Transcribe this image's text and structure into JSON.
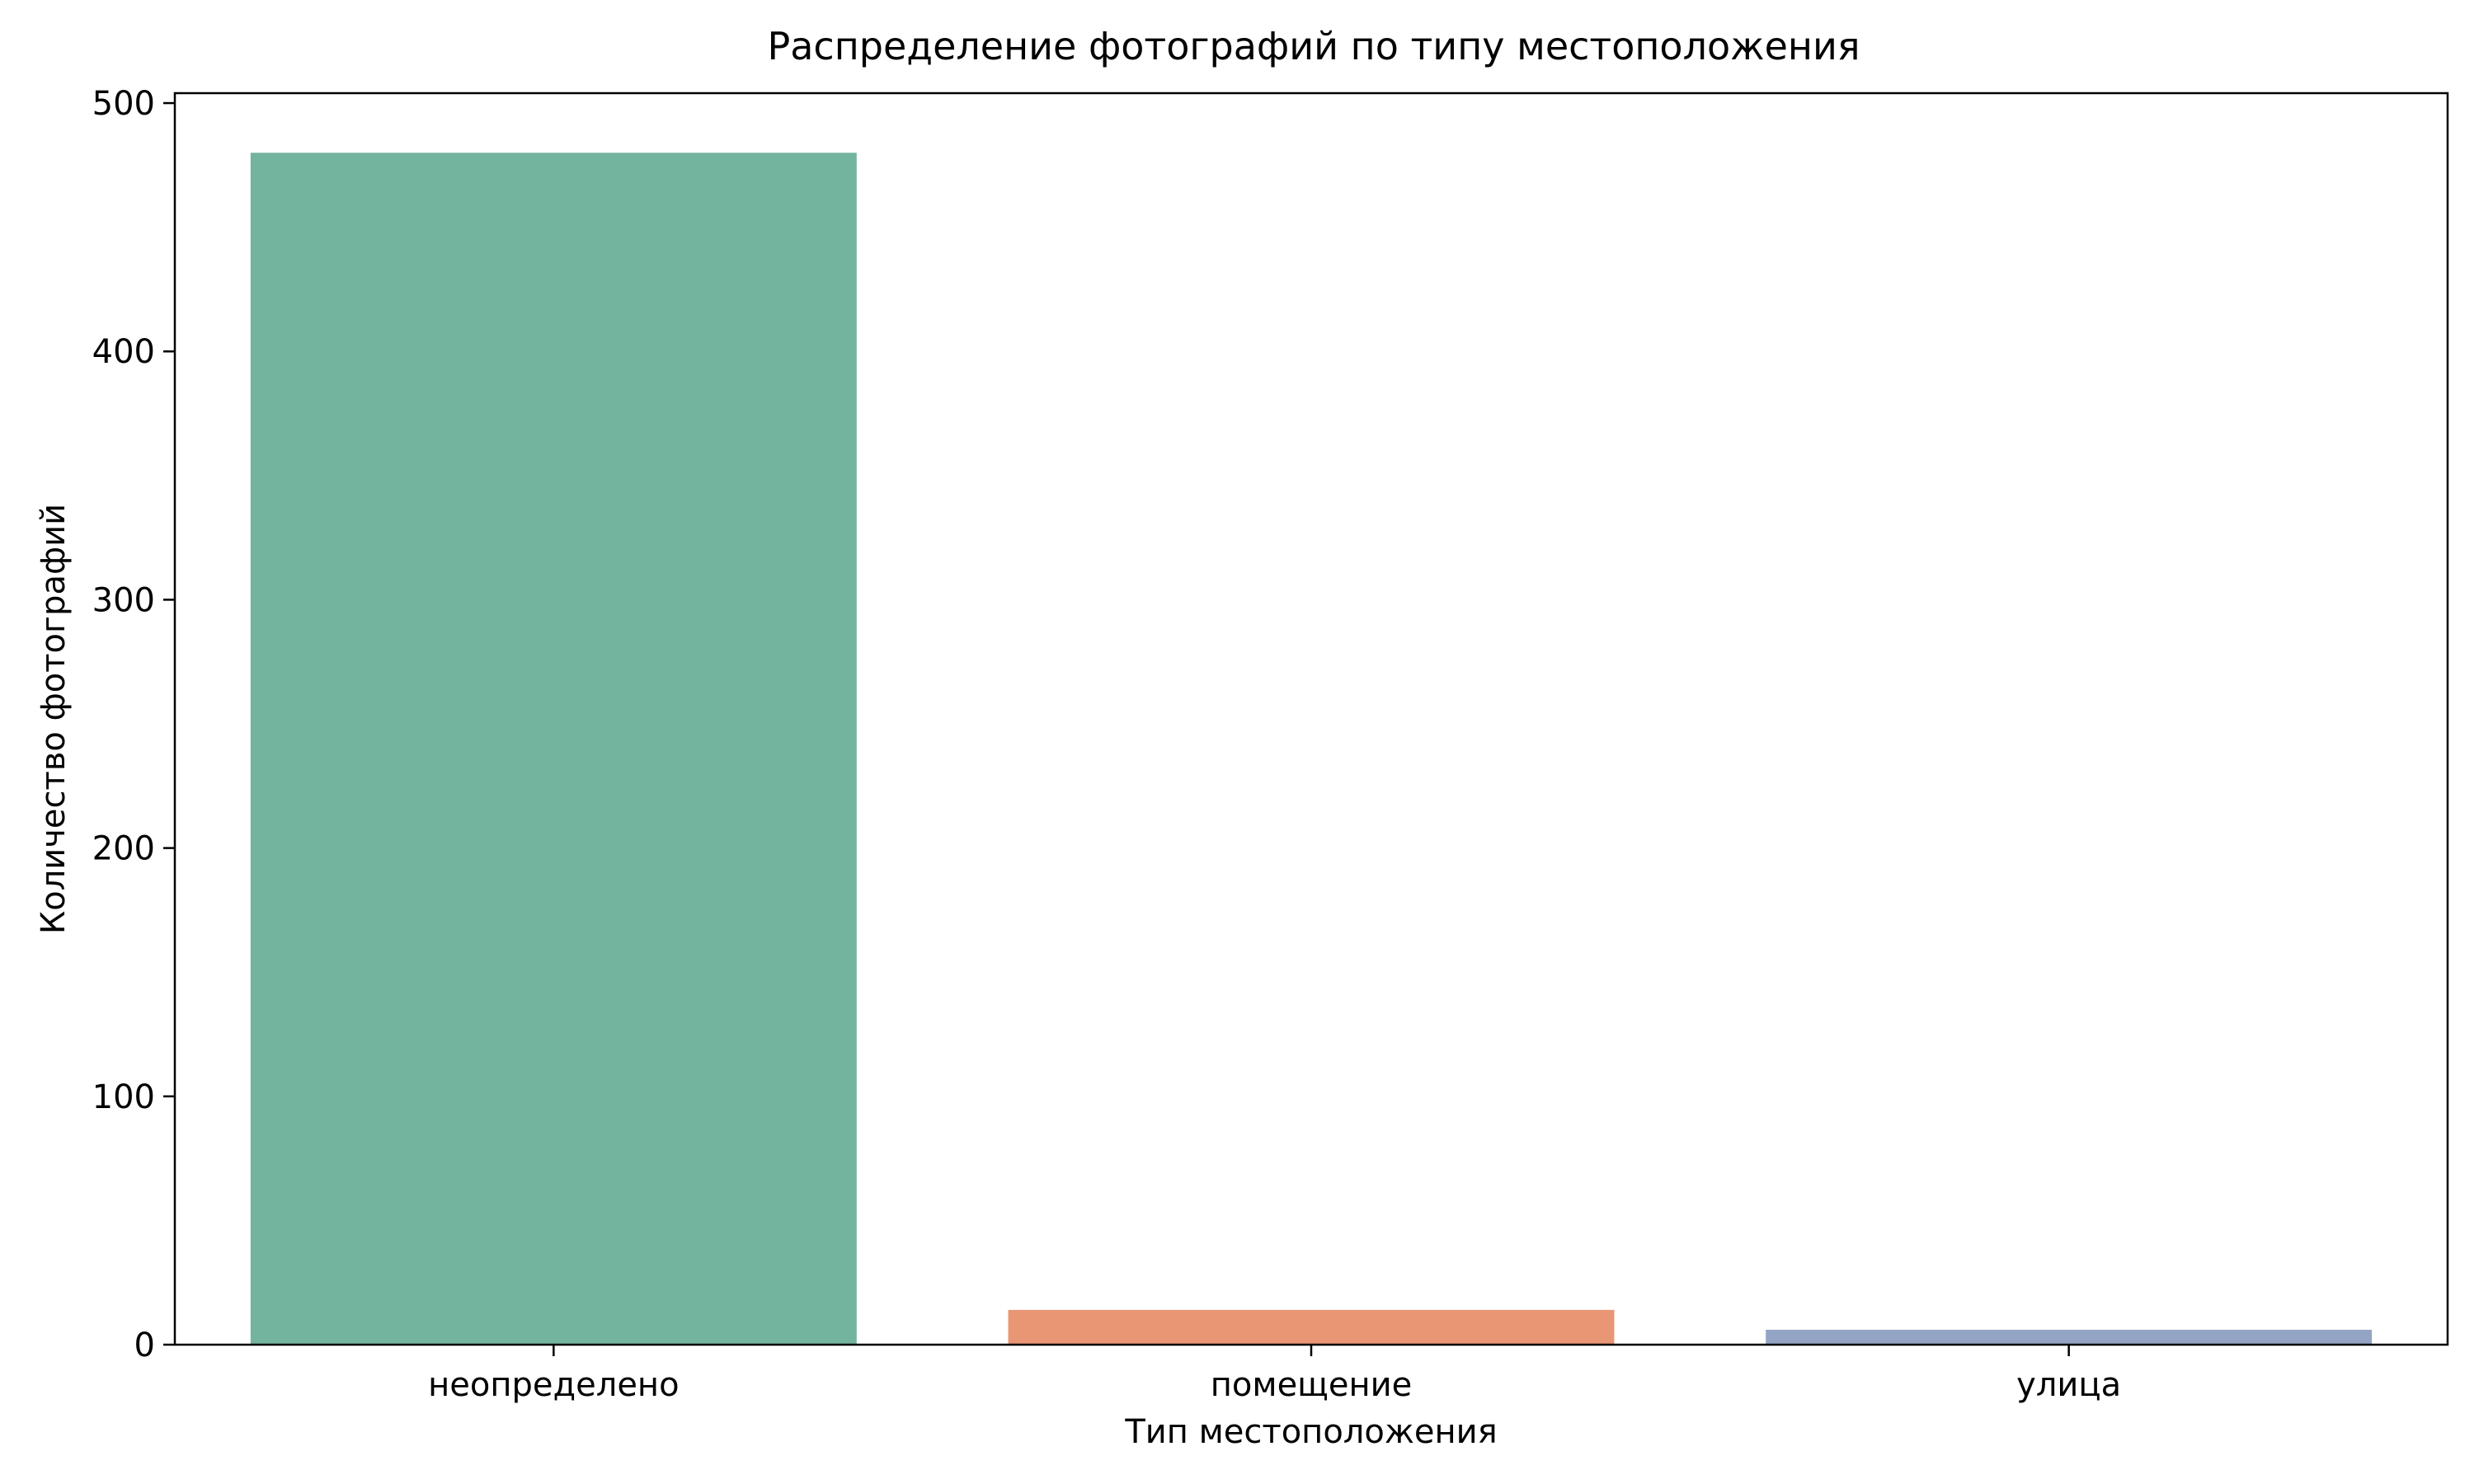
{
  "chart_data": {
    "type": "bar",
    "title": "Распределение фотографий по типу местоположения",
    "xlabel": "Тип местоположения",
    "ylabel": "Количество фотографий",
    "categories": [
      "неопределено",
      "помещение",
      "улица"
    ],
    "values": [
      480,
      14,
      6
    ],
    "colors": [
      "#73b49f",
      "#e99674",
      "#94a4c5"
    ],
    "ylim": [
      0,
      504
    ],
    "yticks": [
      0,
      100,
      200,
      300,
      400,
      500
    ],
    "ytick_labels": [
      "0",
      "100",
      "200",
      "300",
      "400",
      "500"
    ],
    "grid": false,
    "legend": "none"
  }
}
